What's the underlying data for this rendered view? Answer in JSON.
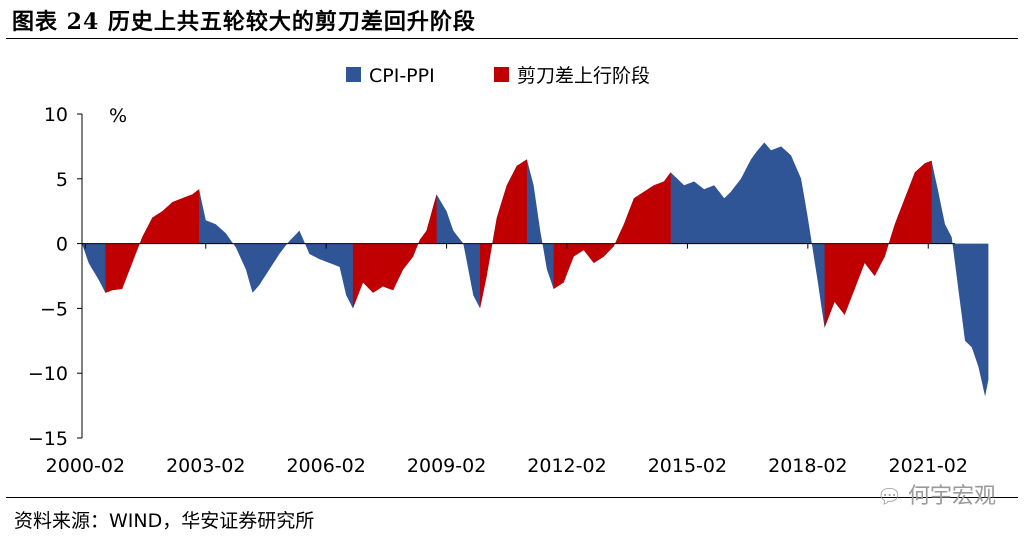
{
  "figure": {
    "title": "图表 24 历史上共五轮较大的剪刀差回升阶段",
    "source": "资料来源：WIND，华安证券研究所",
    "watermark": "何宇宏观",
    "watermark_icon": "wechat-icon"
  },
  "chart_data": {
    "type": "area",
    "unit_label": "%",
    "ylim": [
      -15,
      10
    ],
    "yticks": [
      10,
      5,
      0,
      -5,
      -10,
      -15
    ],
    "xlim": [
      "2000-01",
      "2021-10"
    ],
    "xticks": [
      "2000-02",
      "2003-02",
      "2006-02",
      "2009-02",
      "2012-02",
      "2015-02",
      "2018-02",
      "2021-02"
    ],
    "legend": {
      "position": "top",
      "entries": [
        "CPI-PPI",
        "剪刀差上行阶段"
      ]
    },
    "colors": {
      "series": "#2F5597",
      "highlight": "#C00000"
    },
    "series": [
      {
        "name": "CPI-PPI",
        "points": [
          [
            "2000-01",
            0.0
          ],
          [
            "2000-03",
            -1.5
          ],
          [
            "2000-06",
            -2.8
          ],
          [
            "2000-08",
            -3.8
          ],
          [
            "2000-10",
            -3.6
          ],
          [
            "2001-01",
            -3.5
          ],
          [
            "2001-04",
            -1.5
          ],
          [
            "2001-07",
            0.5
          ],
          [
            "2001-10",
            2.0
          ],
          [
            "2002-01",
            2.5
          ],
          [
            "2002-04",
            3.2
          ],
          [
            "2002-07",
            3.5
          ],
          [
            "2002-10",
            3.8
          ],
          [
            "2002-12",
            4.2
          ],
          [
            "2003-02",
            1.8
          ],
          [
            "2003-05",
            1.5
          ],
          [
            "2003-08",
            0.8
          ],
          [
            "2003-11",
            -0.3
          ],
          [
            "2004-02",
            -2.0
          ],
          [
            "2004-04",
            -3.8
          ],
          [
            "2004-06",
            -3.2
          ],
          [
            "2004-09",
            -2.0
          ],
          [
            "2004-12",
            -0.8
          ],
          [
            "2005-03",
            0.2
          ],
          [
            "2005-06",
            1.0
          ],
          [
            "2005-09",
            -0.8
          ],
          [
            "2005-12",
            -1.2
          ],
          [
            "2006-03",
            -1.5
          ],
          [
            "2006-06",
            -1.8
          ],
          [
            "2006-08",
            -4.0
          ],
          [
            "2006-10",
            -5.0
          ],
          [
            "2007-01",
            -3.0
          ],
          [
            "2007-04",
            -3.8
          ],
          [
            "2007-07",
            -3.3
          ],
          [
            "2007-10",
            -3.6
          ],
          [
            "2008-01",
            -2.0
          ],
          [
            "2008-04",
            -1.0
          ],
          [
            "2008-06",
            0.3
          ],
          [
            "2008-08",
            1.0
          ],
          [
            "2008-11",
            3.8
          ],
          [
            "2009-02",
            2.5
          ],
          [
            "2009-04",
            1.0
          ],
          [
            "2009-07",
            0.0
          ],
          [
            "2009-10",
            -4.0
          ],
          [
            "2009-12",
            -5.0
          ],
          [
            "2010-02",
            -2.5
          ],
          [
            "2010-05",
            2.0
          ],
          [
            "2010-08",
            4.5
          ],
          [
            "2010-11",
            6.0
          ],
          [
            "2011-02",
            6.5
          ],
          [
            "2011-04",
            4.5
          ],
          [
            "2011-06",
            1.0
          ],
          [
            "2011-08",
            -2.0
          ],
          [
            "2011-10",
            -3.5
          ],
          [
            "2012-01",
            -3.0
          ],
          [
            "2012-04",
            -1.0
          ],
          [
            "2012-07",
            -0.5
          ],
          [
            "2012-10",
            -1.5
          ],
          [
            "2013-01",
            -1.0
          ],
          [
            "2013-04",
            -0.2
          ],
          [
            "2013-07",
            1.5
          ],
          [
            "2013-10",
            3.5
          ],
          [
            "2014-01",
            4.0
          ],
          [
            "2014-04",
            4.5
          ],
          [
            "2014-07",
            4.8
          ],
          [
            "2014-09",
            5.5
          ],
          [
            "2015-01",
            4.5
          ],
          [
            "2015-04",
            4.8
          ],
          [
            "2015-07",
            4.2
          ],
          [
            "2015-10",
            4.5
          ],
          [
            "2016-01",
            3.5
          ],
          [
            "2016-03",
            4.0
          ],
          [
            "2016-06",
            5.0
          ],
          [
            "2016-09",
            6.5
          ],
          [
            "2016-11",
            7.2
          ],
          [
            "2017-01",
            7.8
          ],
          [
            "2017-03",
            7.2
          ],
          [
            "2017-06",
            7.5
          ],
          [
            "2017-09",
            6.8
          ],
          [
            "2017-12",
            5.0
          ],
          [
            "2018-02",
            2.0
          ],
          [
            "2018-05",
            -3.0
          ],
          [
            "2018-07",
            -6.5
          ],
          [
            "2018-10",
            -4.5
          ],
          [
            "2019-01",
            -5.5
          ],
          [
            "2019-04",
            -3.5
          ],
          [
            "2019-07",
            -1.5
          ],
          [
            "2019-10",
            -2.5
          ],
          [
            "2020-01",
            -1.0
          ],
          [
            "2020-04",
            1.5
          ],
          [
            "2020-07",
            3.5
          ],
          [
            "2020-10",
            5.5
          ],
          [
            "2021-01",
            6.2
          ],
          [
            "2021-03",
            6.4
          ],
          [
            "2021-05",
            4.0
          ],
          [
            "2021-07",
            1.5
          ],
          [
            "2021-09",
            0.5
          ],
          [
            "2021-11",
            -3.5
          ],
          [
            "2022-01",
            -7.5
          ],
          [
            "2022-03",
            -8.0
          ],
          [
            "2022-05",
            -9.5
          ],
          [
            "2022-07",
            -11.8
          ],
          [
            "2022-08",
            -10.5
          ]
        ]
      }
    ],
    "highlight_ranges": [
      [
        "2000-08",
        "2002-12"
      ],
      [
        "2006-10",
        "2008-11"
      ],
      [
        "2009-12",
        "2011-02"
      ],
      [
        "2011-10",
        "2014-09"
      ],
      [
        "2018-07",
        "2021-03"
      ]
    ]
  }
}
